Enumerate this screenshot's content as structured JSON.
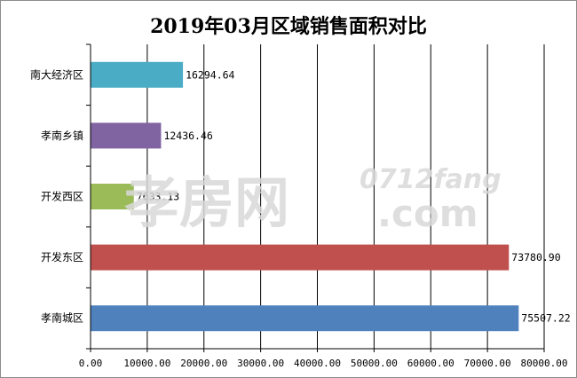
{
  "chart_data": {
    "type": "bar",
    "orientation": "horizontal",
    "title": "2019年03月区域销售面积对比",
    "xlabel": "",
    "ylabel": "",
    "categories": [
      "南大经济区",
      "孝南乡镇",
      "开发西区",
      "开发东区",
      "孝南城区"
    ],
    "values": [
      16294.64,
      12436.46,
      7633.13,
      73780.9,
      75507.22
    ],
    "value_labels": [
      "16294.64",
      "12436.46",
      "7633.13",
      "73780.90",
      "75507.22"
    ],
    "colors": [
      "#4bacc6",
      "#8064a2",
      "#9bbb59",
      "#c0504d",
      "#4f81bd"
    ],
    "xlim": [
      0,
      80000
    ],
    "x_ticks": [
      0,
      10000,
      20000,
      30000,
      40000,
      50000,
      60000,
      70000,
      80000
    ],
    "x_tick_labels": [
      "0.00",
      "10000.00",
      "20000.00",
      "30000.00",
      "40000.00",
      "50000.00",
      "60000.00",
      "70000.00",
      "80000.00"
    ],
    "grid": "vertical",
    "legend": "none"
  },
  "watermark": {
    "brand": "孝房网",
    "site": "0712fang",
    "domain": ".com"
  }
}
